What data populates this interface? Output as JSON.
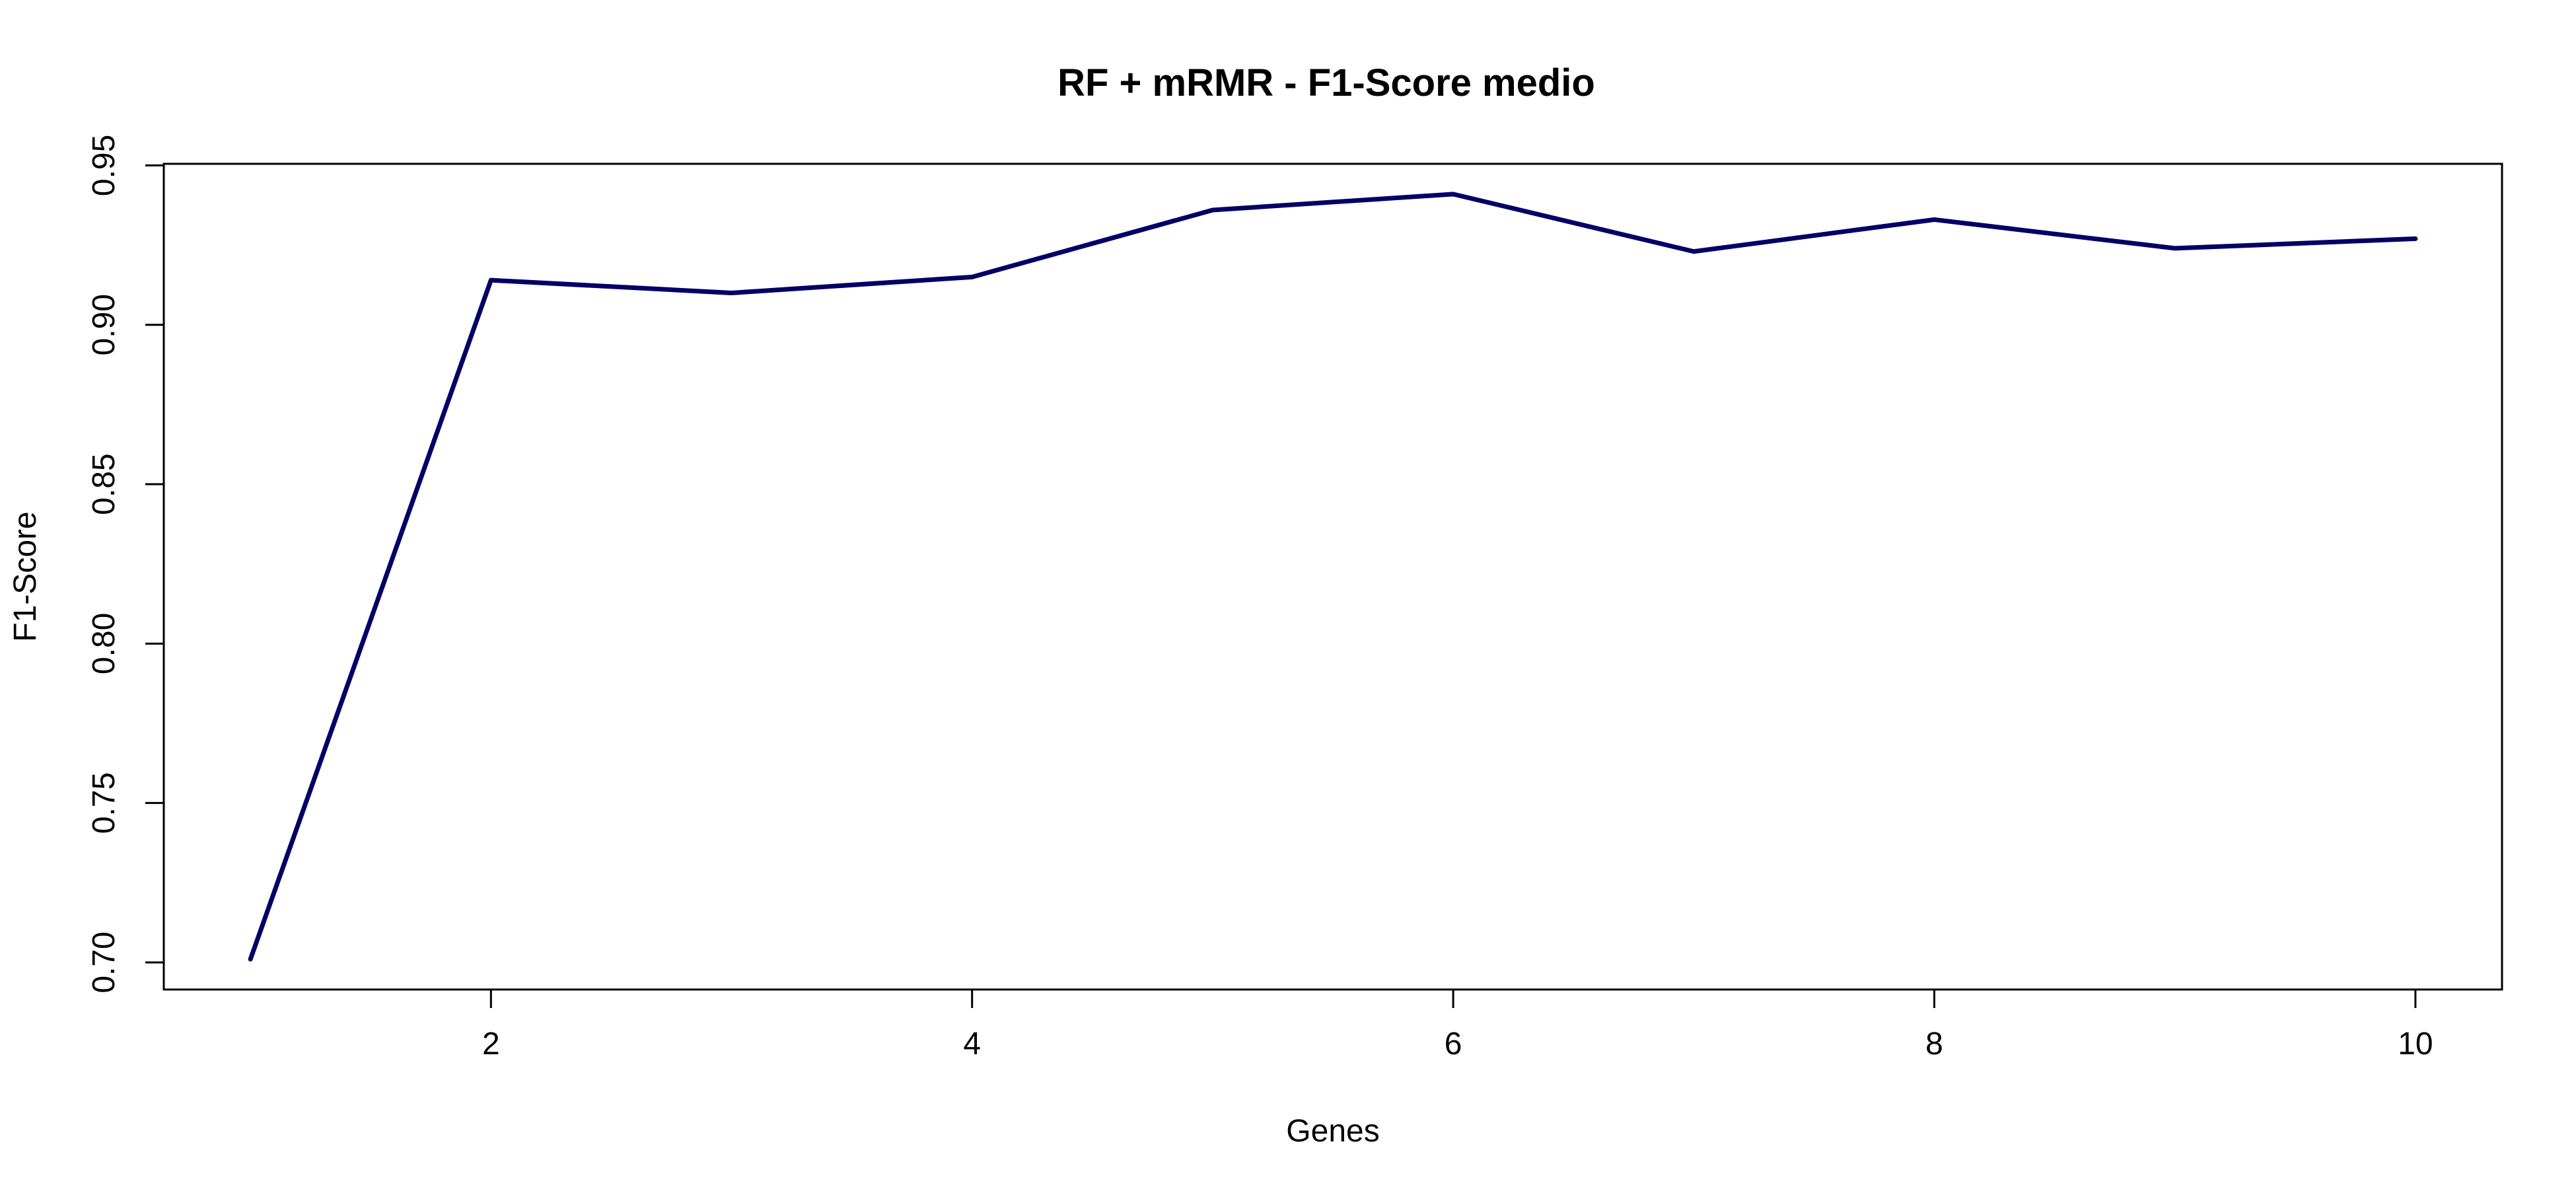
{
  "chart_data": {
    "type": "line",
    "title": "RF + mRMR - F1-Score medio",
    "xlabel": "Genes",
    "ylabel": "F1-Score",
    "x": [
      1,
      2,
      3,
      4,
      5,
      6,
      7,
      8,
      9,
      10
    ],
    "series": [
      {
        "values": [
          0.701,
          0.914,
          0.91,
          0.915,
          0.936,
          0.941,
          0.923,
          0.933,
          0.924,
          0.927
        ],
        "color": "#000066"
      }
    ],
    "xlim": [
      0.64,
      10.36
    ],
    "ylim": [
      0.6915,
      0.9505
    ],
    "xticks": [
      2,
      4,
      6,
      8,
      10
    ],
    "xtick_labels": [
      "2",
      "4",
      "6",
      "8",
      "10"
    ],
    "yticks": [
      0.7,
      0.75,
      0.8,
      0.85,
      0.9,
      0.95
    ],
    "ytick_labels": [
      "0.70",
      "0.75",
      "0.80",
      "0.85",
      "0.90",
      "0.95"
    ],
    "grid": false,
    "legend": "none"
  }
}
